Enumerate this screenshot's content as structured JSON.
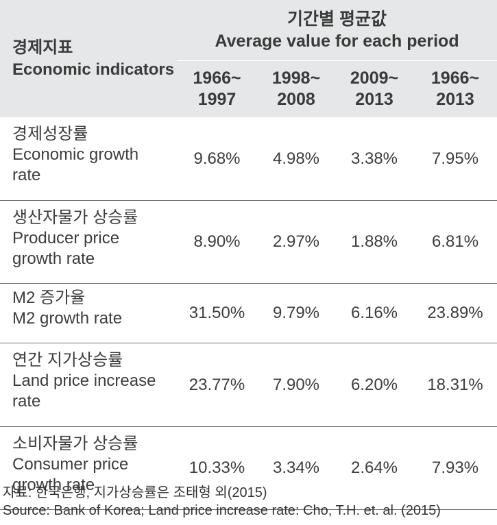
{
  "header": {
    "indicator_ko": "경제지표",
    "indicator_en": "Economic indicators",
    "period_group_ko": "기간별 평균값",
    "period_group_en": "Average value for each period",
    "periods": [
      {
        "start": "1966~",
        "end": "1997"
      },
      {
        "start": "1998~",
        "end": "2008"
      },
      {
        "start": "2009~",
        "end": "2013"
      },
      {
        "start": "1966~",
        "end": "2013"
      }
    ]
  },
  "rows": [
    {
      "label_ko": "경제성장률",
      "label_en": "Economic growth rate",
      "values": [
        "9.68%",
        "4.98%",
        "3.38%",
        "7.95%"
      ]
    },
    {
      "label_ko": "생산자물가 상승률",
      "label_en": "Producer price growth rate",
      "values": [
        "8.90%",
        "2.97%",
        "1.88%",
        "6.81%"
      ]
    },
    {
      "label_ko": "M2 증가율",
      "label_en": "M2 growth rate",
      "values": [
        "31.50%",
        "9.79%",
        "6.16%",
        "23.89%"
      ]
    },
    {
      "label_ko": "연간 지가상승률",
      "label_en": "Land price increase rate",
      "values": [
        "23.77%",
        "7.90%",
        "6.20%",
        "18.31%"
      ]
    },
    {
      "label_ko": "소비자물가 상승률",
      "label_en": "Consumer price growth rate",
      "values": [
        "10.33%",
        "3.34%",
        "2.64%",
        "7.93%"
      ]
    }
  ],
  "source": {
    "ko": "자료: 한국은행, 지가상승률은 조태형 외(2015)",
    "en": "Source: Bank of Korea; Land price increase rate: Cho, T.H. et. al. (2015)"
  },
  "colors": {
    "header_bg": "#e6e7e8",
    "rule": "#6d6e71",
    "text": "#3d3d3d"
  }
}
